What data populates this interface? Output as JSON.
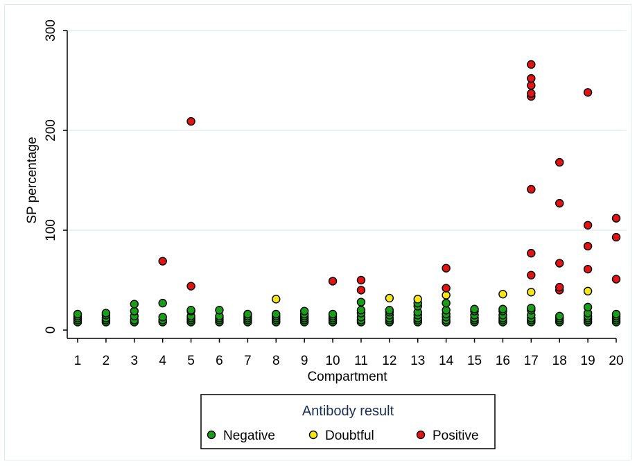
{
  "chart_data": {
    "type": "scatter",
    "title": "",
    "xlabel": "Compartment",
    "ylabel": "SP percentage",
    "x_ticks": [
      "1",
      "2",
      "3",
      "4",
      "5",
      "6",
      "7",
      "8",
      "9",
      "10",
      "11",
      "12",
      "13",
      "14",
      "15",
      "16",
      "17",
      "18",
      "19",
      "20"
    ],
    "y_ticks": [
      "0",
      "100",
      "200",
      "300"
    ],
    "ylim": [
      0,
      300
    ],
    "xlim": [
      0.7,
      20.3
    ],
    "grid": "horizontal",
    "legend": {
      "title": "Antibody result",
      "placement": "bottom"
    },
    "series": [
      {
        "name": "Negative",
        "color": "#1a9e1a",
        "points": [
          [
            1,
            8
          ],
          [
            1,
            10
          ],
          [
            1,
            12
          ],
          [
            1,
            14
          ],
          [
            1,
            16
          ],
          [
            2,
            8
          ],
          [
            2,
            10
          ],
          [
            2,
            12
          ],
          [
            2,
            15
          ],
          [
            2,
            17
          ],
          [
            3,
            8
          ],
          [
            3,
            10
          ],
          [
            3,
            14
          ],
          [
            3,
            19
          ],
          [
            3,
            26
          ],
          [
            4,
            8
          ],
          [
            4,
            10
          ],
          [
            4,
            13
          ],
          [
            4,
            27
          ],
          [
            5,
            8
          ],
          [
            5,
            10
          ],
          [
            5,
            12
          ],
          [
            5,
            14
          ],
          [
            5,
            19
          ],
          [
            5,
            20
          ],
          [
            6,
            8
          ],
          [
            6,
            10
          ],
          [
            6,
            12
          ],
          [
            6,
            14
          ],
          [
            6,
            20
          ],
          [
            7,
            8
          ],
          [
            7,
            10
          ],
          [
            7,
            12
          ],
          [
            7,
            14
          ],
          [
            7,
            16
          ],
          [
            8,
            8
          ],
          [
            8,
            10
          ],
          [
            8,
            12
          ],
          [
            8,
            14
          ],
          [
            8,
            16
          ],
          [
            9,
            8
          ],
          [
            9,
            10
          ],
          [
            9,
            12
          ],
          [
            9,
            14
          ],
          [
            9,
            16
          ],
          [
            9,
            19
          ],
          [
            10,
            8
          ],
          [
            10,
            10
          ],
          [
            10,
            12
          ],
          [
            10,
            14
          ],
          [
            10,
            16
          ],
          [
            11,
            8
          ],
          [
            11,
            10
          ],
          [
            11,
            13
          ],
          [
            11,
            17
          ],
          [
            11,
            20
          ],
          [
            11,
            28
          ],
          [
            12,
            8
          ],
          [
            12,
            10
          ],
          [
            12,
            12
          ],
          [
            12,
            15
          ],
          [
            12,
            18
          ],
          [
            12,
            20
          ],
          [
            13,
            8
          ],
          [
            13,
            10
          ],
          [
            13,
            12
          ],
          [
            13,
            15
          ],
          [
            13,
            18
          ],
          [
            13,
            24
          ],
          [
            13,
            27
          ],
          [
            14,
            8
          ],
          [
            14,
            10
          ],
          [
            14,
            13
          ],
          [
            14,
            16
          ],
          [
            14,
            20
          ],
          [
            14,
            27
          ],
          [
            15,
            8
          ],
          [
            15,
            10
          ],
          [
            15,
            12
          ],
          [
            15,
            15
          ],
          [
            15,
            19
          ],
          [
            15,
            21
          ],
          [
            16,
            8
          ],
          [
            16,
            10
          ],
          [
            16,
            12
          ],
          [
            16,
            15
          ],
          [
            16,
            19
          ],
          [
            16,
            21
          ],
          [
            17,
            8
          ],
          [
            17,
            10
          ],
          [
            17,
            12
          ],
          [
            17,
            15
          ],
          [
            17,
            20
          ],
          [
            17,
            22
          ],
          [
            18,
            8
          ],
          [
            18,
            10
          ],
          [
            18,
            12
          ],
          [
            18,
            14
          ],
          [
            19,
            8
          ],
          [
            19,
            10
          ],
          [
            19,
            12
          ],
          [
            19,
            14
          ],
          [
            19,
            17
          ],
          [
            19,
            23
          ],
          [
            20,
            8
          ],
          [
            20,
            10
          ],
          [
            20,
            12
          ],
          [
            20,
            14
          ],
          [
            20,
            16
          ]
        ]
      },
      {
        "name": "Doubtful",
        "color": "#f5e61a",
        "points": [
          [
            8,
            31
          ],
          [
            12,
            32
          ],
          [
            13,
            31
          ],
          [
            14,
            35
          ],
          [
            16,
            36
          ],
          [
            17,
            38
          ],
          [
            19,
            39
          ]
        ]
      },
      {
        "name": "Positive",
        "color": "#e01414",
        "points": [
          [
            4,
            69
          ],
          [
            5,
            44
          ],
          [
            5,
            209
          ],
          [
            10,
            49
          ],
          [
            11,
            40
          ],
          [
            11,
            50
          ],
          [
            14,
            42
          ],
          [
            14,
            62
          ],
          [
            17,
            55
          ],
          [
            17,
            77
          ],
          [
            17,
            141
          ],
          [
            17,
            234
          ],
          [
            17,
            237
          ],
          [
            17,
            245
          ],
          [
            17,
            252
          ],
          [
            17,
            266
          ],
          [
            18,
            40
          ],
          [
            18,
            43
          ],
          [
            18,
            67
          ],
          [
            18,
            127
          ],
          [
            18,
            168
          ],
          [
            19,
            61
          ],
          [
            19,
            84
          ],
          [
            19,
            105
          ],
          [
            19,
            238
          ],
          [
            20,
            51
          ],
          [
            20,
            93
          ],
          [
            20,
            112
          ]
        ]
      }
    ]
  }
}
